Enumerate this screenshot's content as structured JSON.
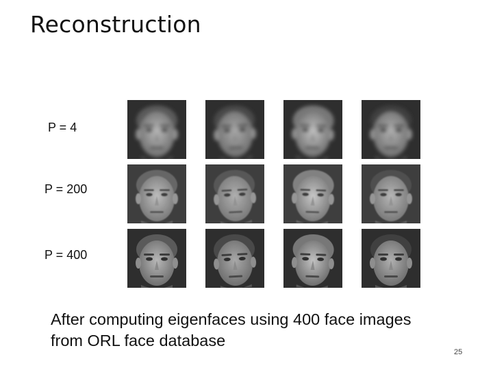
{
  "slide": {
    "title": "Reconstruction",
    "caption": "After computing eigenfaces using 400 face images from ORL face database",
    "page_number": "25"
  },
  "rows": [
    {
      "label": "P = 4",
      "quality": "blurry",
      "faces": 4
    },
    {
      "label": "P = 200",
      "quality": "partial",
      "faces": 4
    },
    {
      "label": "P = 400",
      "quality": "sharp",
      "faces": 4
    }
  ],
  "colors": {
    "background": "#ffffff",
    "text": "#111111",
    "image_frame": "#3a3a3a"
  }
}
